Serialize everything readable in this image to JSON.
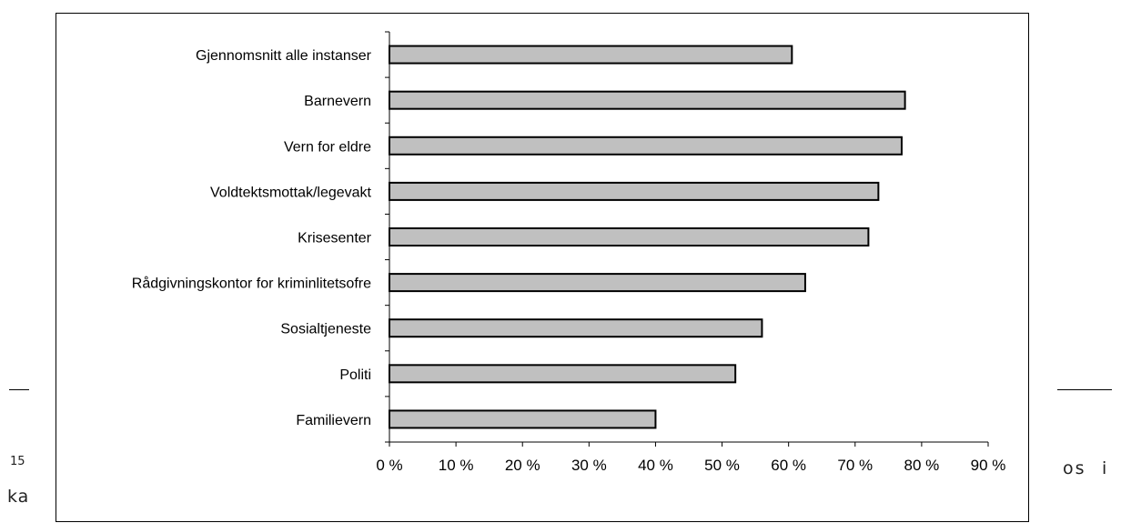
{
  "page": {
    "footnote_fragment": "15",
    "text_fragment_left": "ka",
    "text_fragment_right": "os",
    "text_fragment_right2": "i"
  },
  "chart_data": {
    "type": "bar",
    "orientation": "horizontal",
    "categories": [
      "Gjennomsnitt alle instanser",
      "Barnevern",
      "Vern for eldre",
      "Voldtektsmottak/legevakt",
      "Krisesenter",
      "Rådgivningskontor for kriminlitetsofre",
      "Sosialtjeneste",
      "Politi",
      "Familievern"
    ],
    "values": [
      60.5,
      77.5,
      77,
      73.5,
      72,
      62.5,
      56,
      52,
      40
    ],
    "xlim": [
      0,
      90
    ],
    "x_ticks": [
      "0 %",
      "10 %",
      "20 %",
      "30 %",
      "40 %",
      "50 %",
      "60 %",
      "70 %",
      "80 %",
      "90 %"
    ],
    "title": "",
    "xlabel": "",
    "ylabel": "",
    "bar_color": "#c0c0c0",
    "bar_edge_color": "#000000",
    "grid": false,
    "legend": "none"
  }
}
